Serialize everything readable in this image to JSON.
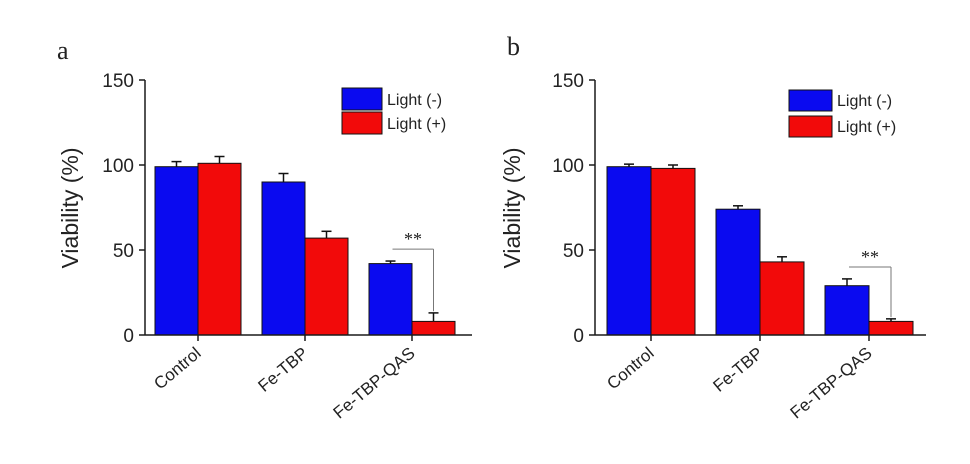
{
  "colors": {
    "light_off": "#0a0af0",
    "light_on": "#f20a0a",
    "axis": "#1a1a1a"
  },
  "chart_data": [
    {
      "type": "bar",
      "panel": "a",
      "ylabel": "Viability (%)",
      "ylim": [
        0,
        150
      ],
      "yticks": [
        0,
        50,
        100,
        150
      ],
      "categories": [
        "Control",
        "Fe-TBP",
        "Fe-TBP-QAS"
      ],
      "series": [
        {
          "name": "Light (-)",
          "values": [
            99,
            90,
            42
          ],
          "errors": [
            3,
            5,
            1.5
          ]
        },
        {
          "name": "Light (+)",
          "values": [
            101,
            57,
            8
          ],
          "errors": [
            4,
            4,
            5
          ]
        }
      ],
      "legend_position": "top-right",
      "annotations": [
        {
          "text": "**",
          "category": "Fe-TBP-QAS"
        }
      ]
    },
    {
      "type": "bar",
      "panel": "b",
      "ylabel": "Viability (%)",
      "ylim": [
        0,
        150
      ],
      "yticks": [
        0,
        50,
        100,
        150
      ],
      "categories": [
        "Control",
        "Fe-TBP",
        "Fe-TBP-QAS"
      ],
      "series": [
        {
          "name": "Light (-)",
          "values": [
            99,
            74,
            29
          ],
          "errors": [
            1.5,
            2,
            4
          ]
        },
        {
          "name": "Light (+)",
          "values": [
            98,
            43,
            8
          ],
          "errors": [
            2,
            3,
            1.5
          ]
        }
      ],
      "legend_position": "top-right",
      "annotations": [
        {
          "text": "**",
          "category": "Fe-TBP-QAS"
        }
      ]
    }
  ]
}
